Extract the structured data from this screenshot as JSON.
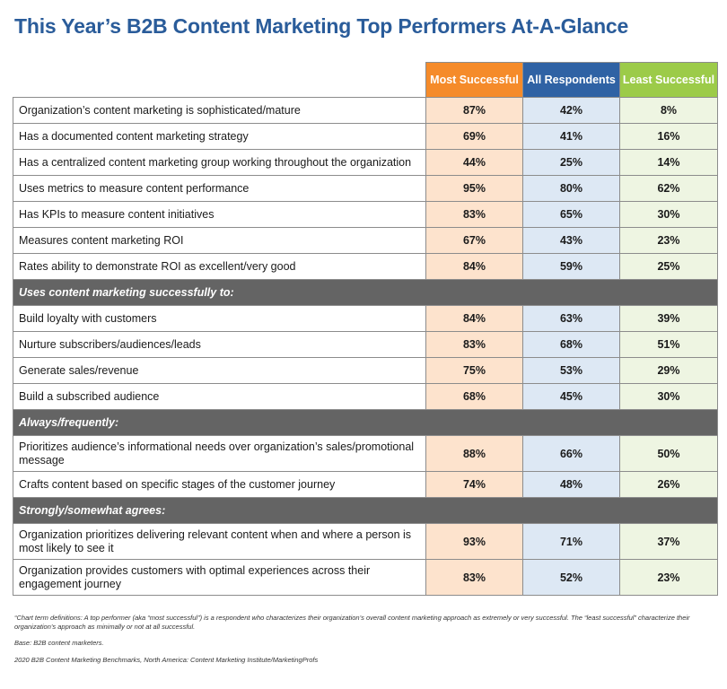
{
  "title": "This Year’s B2B Content Marketing Top Performers At-A-Glance",
  "chart_data": {
    "type": "table",
    "title": "This Year’s B2B Content Marketing Top Performers At-A-Glance",
    "columns": [
      "Most Successful",
      "All Respondents",
      "Least Successful"
    ],
    "column_colors": {
      "most": "#f58b2a",
      "all": "#2f62a4",
      "least": "#9ccb49"
    },
    "groups": [
      {
        "heading": "",
        "rows": [
          {
            "label": "Organization’s content marketing is sophisticated/mature",
            "values": [
              "87%",
              "42%",
              "8%"
            ]
          },
          {
            "label": "Has a documented content marketing strategy",
            "values": [
              "69%",
              "41%",
              "16%"
            ]
          },
          {
            "label": "Has a centralized content marketing group working throughout the organization",
            "values": [
              "44%",
              "25%",
              "14%"
            ]
          },
          {
            "label": "Uses metrics to measure content performance",
            "values": [
              "95%",
              "80%",
              "62%"
            ]
          },
          {
            "label": "Has KPIs to measure content initiatives",
            "values": [
              "83%",
              "65%",
              "30%"
            ]
          },
          {
            "label": "Measures content marketing ROI",
            "values": [
              "67%",
              "43%",
              "23%"
            ]
          },
          {
            "label": "Rates ability to demonstrate ROI as excellent/very good",
            "values": [
              "84%",
              "59%",
              "25%"
            ]
          }
        ]
      },
      {
        "heading": "Uses content marketing successfully to:",
        "rows": [
          {
            "label": "Build loyalty with customers",
            "values": [
              "84%",
              "63%",
              "39%"
            ]
          },
          {
            "label": "Nurture subscribers/audiences/leads",
            "values": [
              "83%",
              "68%",
              "51%"
            ]
          },
          {
            "label": "Generate sales/revenue",
            "values": [
              "75%",
              "53%",
              "29%"
            ]
          },
          {
            "label": "Build a subscribed audience",
            "values": [
              "68%",
              "45%",
              "30%"
            ]
          }
        ]
      },
      {
        "heading": "Always/frequently:",
        "rows": [
          {
            "label": "Prioritizes audience’s informational needs over organization’s sales/promotional message",
            "values": [
              "88%",
              "66%",
              "50%"
            ]
          },
          {
            "label": "Crafts content based on specific stages of the customer journey",
            "values": [
              "74%",
              "48%",
              "26%"
            ]
          }
        ]
      },
      {
        "heading": "Strongly/somewhat agrees:",
        "rows": [
          {
            "label": "Organization prioritizes delivering relevant content when and where a person is most likely to see it",
            "values": [
              "93%",
              "71%",
              "37%"
            ]
          },
          {
            "label": "Organization provides customers with optimal experiences across their engagement journey",
            "values": [
              "83%",
              "52%",
              "23%"
            ]
          }
        ]
      }
    ]
  },
  "notes": {
    "definitions": "“Chart term definitions: A top performer (aka “most successful”) is a respondent who characterizes their organization’s overall content marketing approach as extremely or very successful. The “least successful” characterize their organization’s approach as minimally or not at all successful.",
    "base": "Base: B2B content marketers.",
    "source": "2020 B2B Content Marketing Benchmarks, North America: Content Marketing Institute/MarketingProfs"
  }
}
